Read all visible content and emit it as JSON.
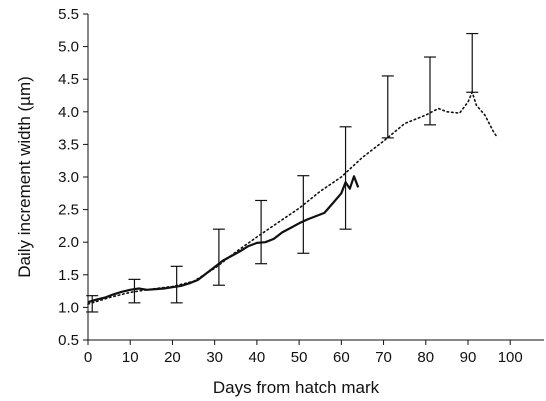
{
  "chart_data": {
    "type": "line",
    "xlabel": "Days from hatch mark",
    "ylabel": "Daily increment width (µm)",
    "xlim": [
      0,
      108
    ],
    "ylim": [
      0.5,
      5.5
    ],
    "x_ticks": [
      0,
      10,
      20,
      30,
      40,
      50,
      60,
      70,
      80,
      90,
      100
    ],
    "y_ticks": [
      0.5,
      1.0,
      1.5,
      2.0,
      2.5,
      3.0,
      3.5,
      4.0,
      4.5,
      5.0,
      5.5
    ],
    "x_tick_labels": [
      "0",
      "10",
      "20",
      "30",
      "40",
      "50",
      "60",
      "70",
      "80",
      "90",
      "100"
    ],
    "y_tick_labels": [
      "0.5",
      "1.0",
      "1.5",
      "2.0",
      "2.5",
      "3.0",
      "3.5",
      "4.0",
      "4.5",
      "5.0",
      "5.5"
    ],
    "grid": false,
    "series": [
      {
        "style": "solid",
        "x": [
          0,
          2,
          4,
          6,
          8,
          10,
          12,
          14,
          16,
          18,
          20,
          22,
          24,
          26,
          28,
          30,
          32,
          34,
          36,
          38,
          40,
          42,
          44,
          46,
          48,
          50,
          52,
          54,
          56,
          58,
          60,
          61,
          62,
          63,
          64
        ],
        "y": [
          1.08,
          1.12,
          1.15,
          1.2,
          1.24,
          1.27,
          1.29,
          1.27,
          1.28,
          1.29,
          1.31,
          1.33,
          1.37,
          1.42,
          1.52,
          1.62,
          1.72,
          1.79,
          1.86,
          1.94,
          1.99,
          2.0,
          2.05,
          2.15,
          2.22,
          2.29,
          2.35,
          2.4,
          2.45,
          2.6,
          2.75,
          2.92,
          2.82,
          3.01,
          2.84
        ]
      },
      {
        "style": "dotted",
        "x": [
          0,
          5,
          10,
          15,
          20,
          25,
          30,
          35,
          40,
          45,
          50,
          55,
          60,
          65,
          70,
          75,
          80,
          83,
          85,
          88,
          90,
          91,
          92,
          94,
          96,
          97
        ],
        "y": [
          1.05,
          1.15,
          1.23,
          1.28,
          1.32,
          1.4,
          1.6,
          1.85,
          2.08,
          2.3,
          2.52,
          2.78,
          3.0,
          3.3,
          3.55,
          3.82,
          3.95,
          4.05,
          4.0,
          3.98,
          4.15,
          4.3,
          4.1,
          3.95,
          3.7,
          3.6
        ]
      }
    ],
    "error_bars": [
      {
        "x": 1,
        "low": 0.93,
        "high": 1.18
      },
      {
        "x": 11,
        "low": 1.07,
        "high": 1.43
      },
      {
        "x": 21,
        "low": 1.07,
        "high": 1.63
      },
      {
        "x": 31,
        "low": 1.34,
        "high": 2.2
      },
      {
        "x": 41,
        "low": 1.67,
        "high": 2.64
      },
      {
        "x": 51,
        "low": 1.83,
        "high": 3.02
      },
      {
        "x": 61,
        "low": 2.2,
        "high": 3.77
      },
      {
        "x": 71,
        "low": 3.6,
        "high": 4.55
      },
      {
        "x": 81,
        "low": 3.8,
        "high": 4.84
      },
      {
        "x": 91,
        "low": 4.3,
        "high": 5.2
      }
    ]
  }
}
